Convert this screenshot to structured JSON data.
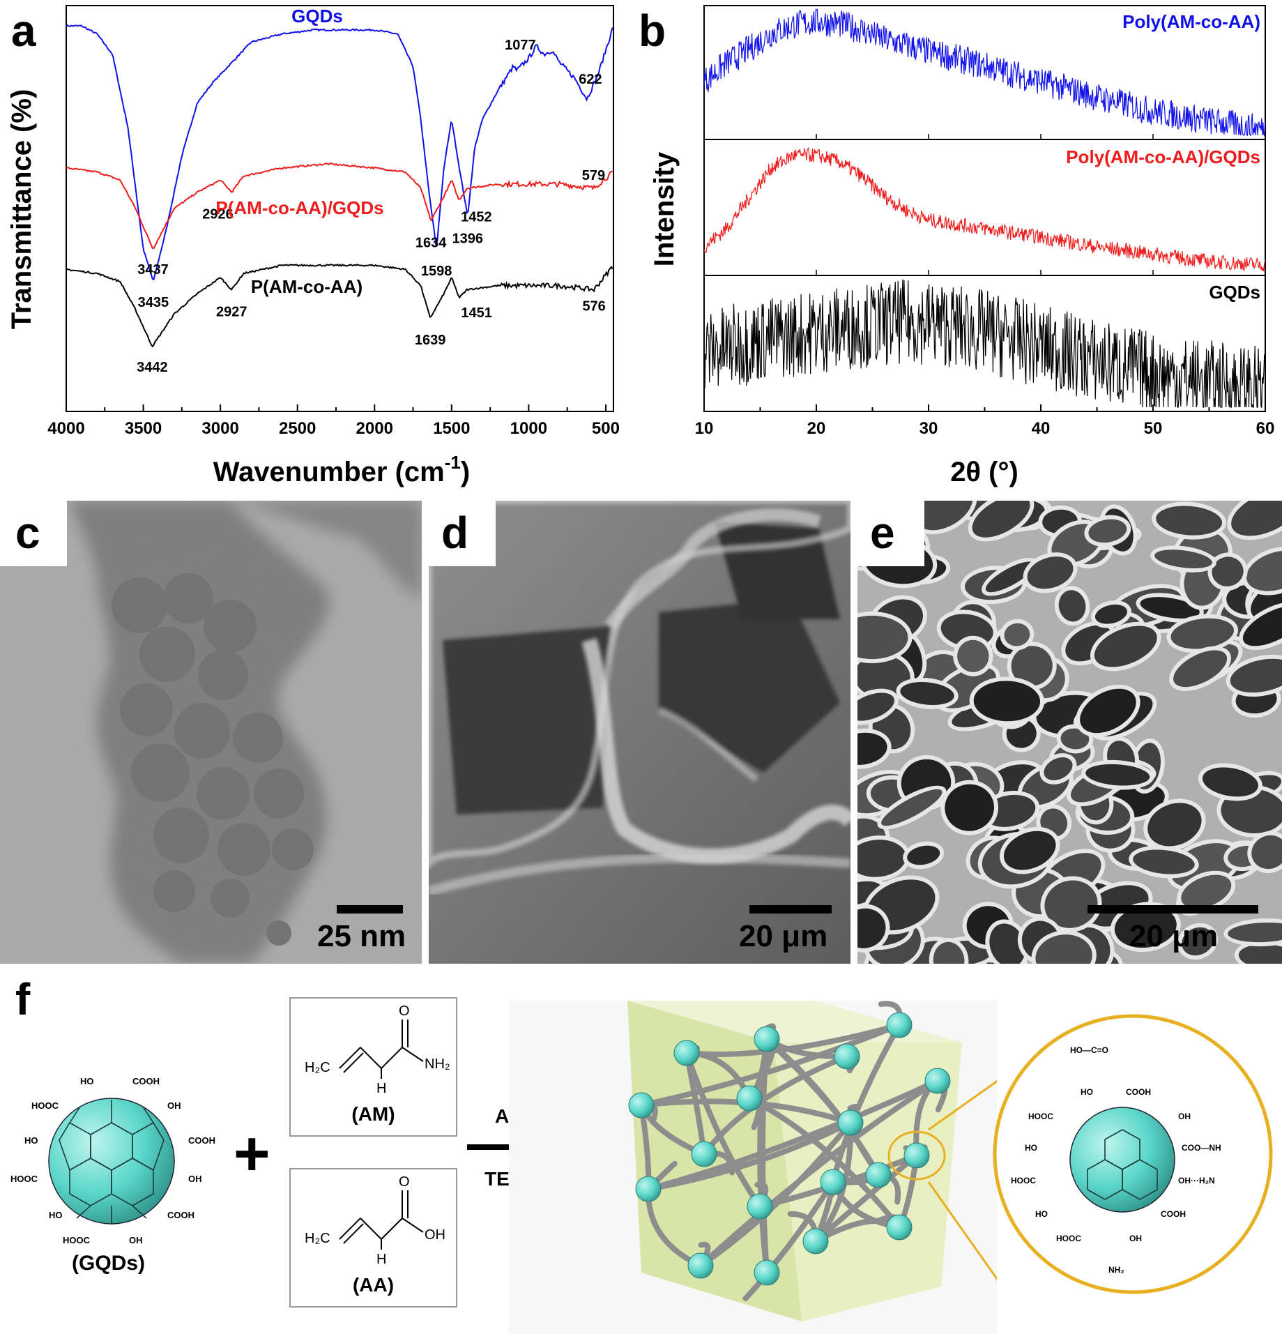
{
  "panels": {
    "a": {
      "label": "a",
      "xlabel": "Wavenumber (cm",
      "xlabel_sup": "-1",
      "xlabel_end": ")",
      "ylabel": "Transmittance (%)",
      "xticks": [
        "4000",
        "3500",
        "3000",
        "2500",
        "2000",
        "1500",
        "1000",
        "500"
      ],
      "series_labels": [
        "GQDs",
        "P(AM-co-AA)/GQDs",
        "P(AM-co-AA)"
      ],
      "annotations": {
        "gqds": [
          "3435",
          "1598",
          "1396",
          "1077",
          "622"
        ],
        "composite": [
          "3437",
          "2926",
          "1634",
          "1452",
          "579"
        ],
        "copolymer": [
          "3442",
          "2927",
          "1639",
          "1451",
          "576"
        ]
      }
    },
    "b": {
      "label": "b",
      "xlabel": "2θ (°)",
      "ylabel": "Intensity",
      "xticks": [
        "10",
        "20",
        "30",
        "40",
        "50",
        "60"
      ],
      "series_labels": [
        "Poly(AM-co-AA)",
        "Poly(AM-co-AA)/GQDs",
        "GQDs"
      ]
    },
    "c": {
      "label": "c",
      "scale": "25 nm"
    },
    "d": {
      "label": "d",
      "scale": "20 μm"
    },
    "e": {
      "label": "e",
      "scale": "20 μm"
    },
    "f": {
      "label": "f",
      "gqds_caption": "(GQDs)",
      "am_caption": "(AM)",
      "aa_caption": "(AA)",
      "plus": "+",
      "arrow_top": "APS",
      "arrow_bottom": "TEMED",
      "chem": {
        "o": "O",
        "h": "H",
        "h2c": "H₂C",
        "nh2": "NH₂",
        "oh": "OH",
        "ho": "HO",
        "cooh": "COOH",
        "hooc": "HOOC",
        "coo_nh": "COO—NH",
        "oh_h2n": "OH···H₂N",
        "ho_c_o": "HO—C=O"
      }
    }
  },
  "colors": {
    "blue": "#1010e8",
    "red": "#ee1c1c",
    "black": "#000000",
    "teal": "#5ad6c9",
    "gold": "#e8b020"
  },
  "chart_data": [
    {
      "type": "line",
      "title": "",
      "xlabel": "Wavenumber (cm-1)",
      "ylabel": "Transmittance (%)",
      "xlim": [
        4000,
        450
      ],
      "series": [
        {
          "name": "GQDs",
          "x": [
            4000,
            3900,
            3800,
            3700,
            3600,
            3500,
            3435,
            3350,
            3250,
            3150,
            3050,
            2950,
            2800,
            2600,
            2400,
            2200,
            2000,
            1850,
            1750,
            1700,
            1650,
            1598,
            1550,
            1500,
            1450,
            1396,
            1350,
            1300,
            1200,
            1100,
            1077,
            1000,
            950,
            900,
            850,
            800,
            700,
            622,
            550,
            450
          ],
          "y": [
            95,
            95,
            93,
            88,
            70,
            40,
            32,
            45,
            63,
            76,
            81,
            85,
            91,
            93,
            94,
            94,
            94,
            93,
            85,
            72,
            55,
            40,
            60,
            72,
            60,
            48,
            65,
            72,
            79,
            85,
            84,
            87,
            90,
            88,
            89,
            86,
            82,
            77,
            83,
            95
          ]
        },
        {
          "name": "P(AM-co-AA)/GQDs",
          "x": [
            4000,
            3800,
            3650,
            3550,
            3437,
            3300,
            3150,
            3000,
            2926,
            2850,
            2600,
            2300,
            2000,
            1800,
            1700,
            1634,
            1550,
            1500,
            1452,
            1400,
            1200,
            1000,
            800,
            579,
            450
          ],
          "y": [
            60,
            59,
            57,
            50,
            40,
            50,
            54,
            57,
            54,
            58,
            60,
            61,
            60,
            59,
            55,
            47,
            53,
            57,
            52,
            55,
            56,
            56,
            56,
            55,
            59
          ]
        },
        {
          "name": "P(AM-co-AA)",
          "x": [
            4000,
            3800,
            3650,
            3550,
            3442,
            3300,
            3150,
            3000,
            2927,
            2850,
            2600,
            2300,
            2000,
            1800,
            1700,
            1639,
            1550,
            1500,
            1451,
            1400,
            1200,
            1000,
            800,
            576,
            450
          ],
          "y": [
            35,
            34,
            32,
            25,
            16,
            24,
            29,
            33,
            30,
            34,
            36,
            36,
            36,
            35,
            31,
            23,
            29,
            33,
            28,
            30,
            31,
            31,
            31,
            30,
            36
          ]
        }
      ],
      "annotations": [
        {
          "series": "GQDs",
          "x": 3435,
          "text": "3435"
        },
        {
          "series": "GQDs",
          "x": 1598,
          "text": "1598"
        },
        {
          "series": "GQDs",
          "x": 1396,
          "text": "1396"
        },
        {
          "series": "GQDs",
          "x": 1077,
          "text": "1077"
        },
        {
          "series": "GQDs",
          "x": 622,
          "text": "622"
        },
        {
          "series": "P(AM-co-AA)/GQDs",
          "x": 3437,
          "text": "3437"
        },
        {
          "series": "P(AM-co-AA)/GQDs",
          "x": 2926,
          "text": "2926"
        },
        {
          "series": "P(AM-co-AA)/GQDs",
          "x": 1634,
          "text": "1634"
        },
        {
          "series": "P(AM-co-AA)/GQDs",
          "x": 1452,
          "text": "1452"
        },
        {
          "series": "P(AM-co-AA)/GQDs",
          "x": 579,
          "text": "579"
        },
        {
          "series": "P(AM-co-AA)",
          "x": 3442,
          "text": "3442"
        },
        {
          "series": "P(AM-co-AA)",
          "x": 2927,
          "text": "2927"
        },
        {
          "series": "P(AM-co-AA)",
          "x": 1639,
          "text": "1639"
        },
        {
          "series": "P(AM-co-AA)",
          "x": 1451,
          "text": "1451"
        },
        {
          "series": "P(AM-co-AA)",
          "x": 576,
          "text": "576"
        }
      ]
    },
    {
      "type": "line",
      "title": "",
      "xlabel": "2θ (°)",
      "ylabel": "Intensity",
      "xlim": [
        10,
        60
      ],
      "series": [
        {
          "name": "Poly(AM-co-AA)",
          "x": [
            10,
            12,
            14,
            16,
            18,
            20,
            22,
            24,
            26,
            30,
            35,
            40,
            45,
            50,
            55,
            60
          ],
          "y": [
            0.45,
            0.6,
            0.72,
            0.85,
            0.92,
            0.95,
            0.93,
            0.88,
            0.8,
            0.7,
            0.58,
            0.45,
            0.32,
            0.2,
            0.12,
            0.05
          ]
        },
        {
          "name": "Poly(AM-co-AA)/GQDs",
          "x": [
            10,
            12,
            14,
            16,
            18,
            20,
            22,
            24,
            26,
            28,
            30,
            35,
            40,
            45,
            50,
            55,
            60
          ],
          "y": [
            0.2,
            0.35,
            0.6,
            0.85,
            0.95,
            0.95,
            0.9,
            0.78,
            0.62,
            0.5,
            0.42,
            0.35,
            0.28,
            0.2,
            0.14,
            0.08,
            0.05
          ]
        },
        {
          "name": "GQDs",
          "x": [
            10,
            15,
            20,
            25,
            28,
            30,
            35,
            40,
            45,
            50,
            55,
            60
          ],
          "y": [
            0.45,
            0.55,
            0.62,
            0.68,
            0.7,
            0.7,
            0.62,
            0.5,
            0.38,
            0.28,
            0.2,
            0.15
          ]
        }
      ]
    }
  ]
}
